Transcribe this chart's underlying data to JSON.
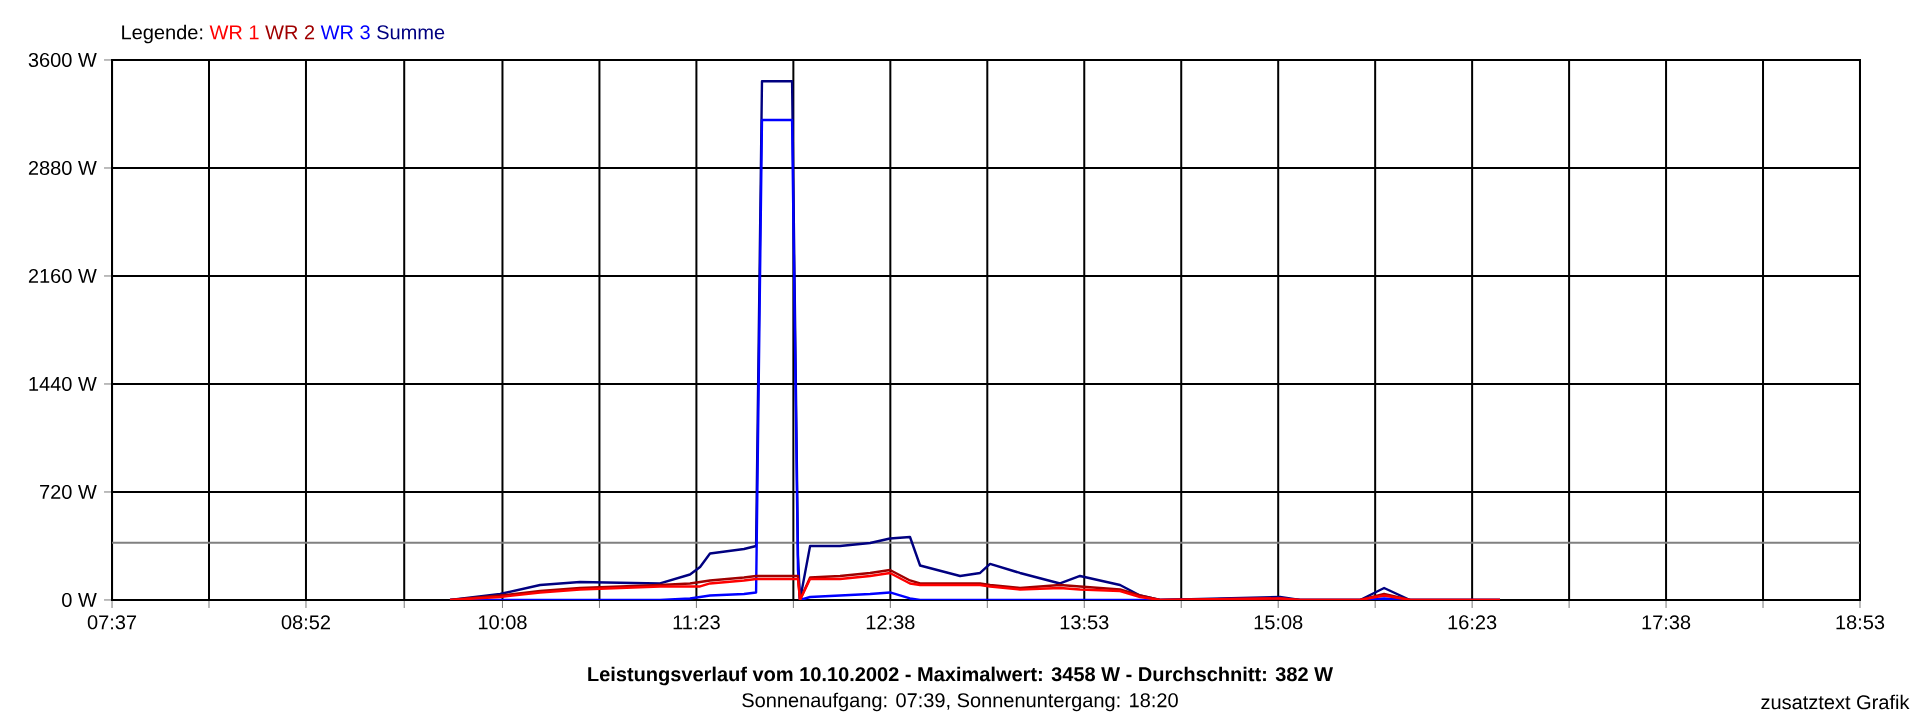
{
  "chart_data": {
    "type": "line",
    "title": "Leistungsverlauf vom 10.10.2002 - Maximalwert: 3458 W - Durchschnitt: 382 W",
    "subtitle": "Sonnenaufgang: 07:39, Sonnenuntergang: 18:20",
    "annotations": [
      "zusatztext Grafik"
    ],
    "legend_title": "Legende:",
    "legend": "top left",
    "grid": true,
    "marker": "none",
    "line_style": "solid",
    "x": [
      9.795,
      10.118,
      10.376,
      10.633,
      11.149,
      11.342,
      11.407,
      11.471,
      11.69,
      11.768,
      11.806,
      12.0,
      12.038,
      12.051,
      12.116,
      12.309,
      12.503,
      12.631,
      12.76,
      12.825,
      13.083,
      13.212,
      13.276,
      13.469,
      13.727,
      13.856,
      14.114,
      14.243,
      14.372,
      15.145,
      15.274,
      15.661,
      15.816,
      15.983,
      16.563
    ],
    "series": [
      {
        "name": "WR 1",
        "color": "#ff0000",
        "values": [
          0,
          20,
          50,
          70,
          90,
          90,
          90,
          110,
          130,
          140,
          140,
          140,
          140,
          0,
          140,
          140,
          160,
          180,
          110,
          100,
          100,
          100,
          90,
          70,
          80,
          70,
          60,
          20,
          0,
          10,
          0,
          0,
          30,
          0,
          0
        ]
      },
      {
        "name": "WR 2",
        "color": "#a00000",
        "values": [
          0,
          30,
          60,
          80,
          100,
          110,
          120,
          130,
          150,
          160,
          160,
          160,
          160,
          0,
          150,
          160,
          180,
          200,
          130,
          110,
          110,
          110,
          100,
          80,
          100,
          90,
          70,
          30,
          0,
          10,
          0,
          0,
          40,
          0,
          0
        ]
      },
      {
        "name": "WR 3",
        "color": "#0000ff",
        "values": [
          0,
          0,
          0,
          0,
          0,
          10,
          20,
          30,
          40,
          50,
          3200,
          3200,
          200,
          0,
          20,
          30,
          40,
          50,
          10,
          0,
          0,
          0,
          0,
          0,
          0,
          0,
          0,
          0,
          0,
          10,
          0,
          0,
          10,
          0,
          0
        ]
      },
      {
        "name": "Summe",
        "color": "#000080",
        "values": [
          0,
          40,
          100,
          120,
          110,
          170,
          220,
          310,
          340,
          360,
          3458,
          3458,
          300,
          0,
          360,
          360,
          380,
          410,
          420,
          230,
          160,
          180,
          240,
          180,
          110,
          160,
          100,
          30,
          0,
          20,
          0,
          0,
          80,
          0,
          0
        ]
      }
    ],
    "ref_lines": [
      {
        "axis": "y",
        "value": 382,
        "color": "#808080"
      }
    ],
    "xlim": [
      7.6167,
      18.8833
    ],
    "xticks": [
      {
        "value": 7.6167,
        "label": "07:37"
      },
      {
        "value": 8.2417,
        "label": null
      },
      {
        "value": 8.8667,
        "label": "08:52"
      },
      {
        "value": 9.5,
        "label": null
      },
      {
        "value": 10.1333,
        "label": "10:08"
      },
      {
        "value": 10.7583,
        "label": null
      },
      {
        "value": 11.3833,
        "label": "11:23"
      },
      {
        "value": 12.0083,
        "label": null
      },
      {
        "value": 12.6333,
        "label": "12:38"
      },
      {
        "value": 13.2583,
        "label": null
      },
      {
        "value": 13.8833,
        "label": "13:53"
      },
      {
        "value": 14.5083,
        "label": null
      },
      {
        "value": 15.1333,
        "label": "15:08"
      },
      {
        "value": 15.7583,
        "label": null
      },
      {
        "value": 16.3833,
        "label": "16:23"
      },
      {
        "value": 17.0083,
        "label": null
      },
      {
        "value": 17.6333,
        "label": "17:38"
      },
      {
        "value": 18.2583,
        "label": null
      },
      {
        "value": 18.8833,
        "label": "18:53"
      }
    ],
    "ylim": [
      0,
      3600
    ],
    "yticks": [
      {
        "value": 0,
        "label": "0 W"
      },
      {
        "value": 720,
        "label": "720 W"
      },
      {
        "value": 1440,
        "label": "1440 W"
      },
      {
        "value": 2160,
        "label": "2160 W"
      },
      {
        "value": 2880,
        "label": "2880 W"
      },
      {
        "value": 3600,
        "label": "3600 W"
      }
    ]
  }
}
